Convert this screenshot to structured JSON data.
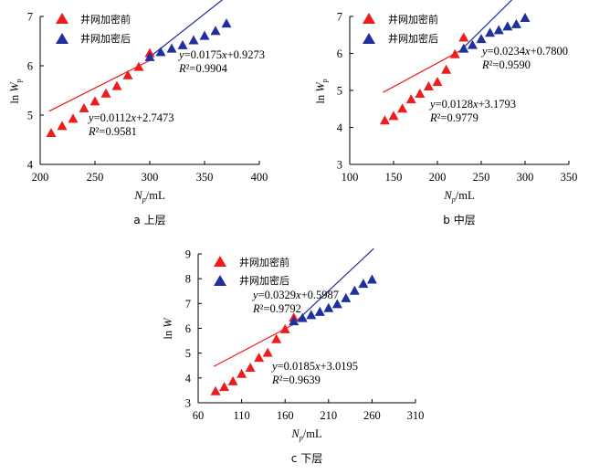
{
  "colors": {
    "before": "#ee1c1c",
    "after": "#1f2f9e",
    "axis": "#000000"
  },
  "chart_data": [
    {
      "type": "scatter",
      "caption": "a 上层",
      "xlabel_main": "N",
      "xlabel_sub": "p",
      "xlabel_unit": "/mL",
      "ylabel_main": "ln ",
      "ylabel_italic": "W",
      "ylabel_sub": "p",
      "xlim": [
        200,
        400
      ],
      "ylim": [
        4,
        7
      ],
      "xticks": [
        200,
        250,
        300,
        350,
        400
      ],
      "yticks": [
        4,
        5,
        6,
        7
      ],
      "legend": [
        "井网加密前",
        "井网加密后"
      ],
      "series": [
        {
          "name": "井网加密前",
          "marker": "triangle",
          "x": [
            210,
            220,
            230,
            240,
            250,
            260,
            270,
            280,
            290,
            300
          ],
          "y": [
            4.63,
            4.77,
            4.92,
            5.13,
            5.27,
            5.43,
            5.58,
            5.8,
            5.97,
            6.25
          ],
          "fit": {
            "slope": 0.0112,
            "intercept": 2.7473,
            "x_range": [
              208,
              301
            ]
          },
          "equation": "y=0.0112x+2.7473",
          "r2_label": "R²=0.9581"
        },
        {
          "name": "井网加密后",
          "marker": "triangle",
          "x": [
            300,
            310,
            320,
            330,
            340,
            350,
            360,
            370
          ],
          "y": [
            6.17,
            6.27,
            6.34,
            6.41,
            6.51,
            6.6,
            6.7,
            6.85
          ],
          "fit": {
            "slope": 0.0175,
            "intercept": 0.9273,
            "x_range": [
              299,
              377
            ]
          },
          "equation": "y=0.0175x+0.9273",
          "r2_label": "R²=0.9904"
        }
      ]
    },
    {
      "type": "scatter",
      "caption": "b 中层",
      "xlabel_main": "N",
      "xlabel_sub": "p",
      "xlabel_unit": "/mL",
      "ylabel_main": "ln ",
      "ylabel_italic": "W",
      "ylabel_sub": "p",
      "xlim": [
        100,
        350
      ],
      "ylim": [
        3,
        7
      ],
      "xticks": [
        100,
        150,
        200,
        250,
        300,
        350
      ],
      "yticks": [
        3,
        4,
        5,
        6,
        7
      ],
      "legend": [
        "井网加密前",
        "井网加密后"
      ],
      "series": [
        {
          "name": "井网加密前",
          "marker": "triangle",
          "x": [
            140,
            150,
            160,
            170,
            180,
            190,
            200,
            210,
            220,
            230
          ],
          "y": [
            4.18,
            4.3,
            4.5,
            4.75,
            4.9,
            5.1,
            5.22,
            5.55,
            5.97,
            6.42
          ],
          "fit": {
            "slope": 0.0128,
            "intercept": 3.1793,
            "x_range": [
              138,
              232
            ]
          },
          "equation": "y=0.0128x+3.1793",
          "r2_label": "R²=0.9779"
        },
        {
          "name": "井网加密后",
          "marker": "triangle",
          "x": [
            230,
            240,
            250,
            260,
            270,
            280,
            290,
            300
          ],
          "y": [
            6.12,
            6.22,
            6.38,
            6.55,
            6.62,
            6.72,
            6.78,
            6.95
          ],
          "fit": {
            "slope": 0.0234,
            "intercept": 0.78,
            "x_range": [
              228,
              302
            ]
          },
          "equation": "y=0.0234x+0.7800",
          "r2_label": "R²=0.9590"
        }
      ]
    },
    {
      "type": "scatter",
      "caption": "c 下层",
      "xlabel_main": "N",
      "xlabel_sub": "p",
      "xlabel_unit": "/mL",
      "ylabel_main": "ln ",
      "ylabel_italic": "W",
      "ylabel_sub": "",
      "xlim": [
        60,
        310
      ],
      "ylim": [
        3,
        9
      ],
      "xticks": [
        60,
        110,
        160,
        210,
        260,
        310
      ],
      "yticks": [
        3,
        4,
        5,
        6,
        7,
        8,
        9
      ],
      "legend": [
        "井网加密前",
        "井网加密后"
      ],
      "series": [
        {
          "name": "井网加密前",
          "marker": "triangle",
          "x": [
            80,
            90,
            100,
            110,
            120,
            130,
            140,
            150,
            160,
            170
          ],
          "y": [
            3.45,
            3.62,
            3.85,
            4.15,
            4.4,
            4.8,
            5.0,
            5.55,
            5.95,
            6.42
          ],
          "fit": {
            "slope": 0.0185,
            "intercept": 3.0195,
            "x_range": [
              78,
              171
            ]
          },
          "equation": "y=0.0185x+3.0195",
          "r2_label": "R²=0.9639"
        },
        {
          "name": "井网加密后",
          "marker": "triangle",
          "x": [
            170,
            180,
            190,
            200,
            210,
            220,
            230,
            240,
            250,
            260
          ],
          "y": [
            6.27,
            6.4,
            6.52,
            6.65,
            6.8,
            6.96,
            7.2,
            7.5,
            7.78,
            7.95
          ],
          "fit": {
            "slope": 0.0329,
            "intercept": 0.5987,
            "x_range": [
              168,
              262
            ]
          },
          "equation": "y=0.0329x+0.5987",
          "r2_label": "R²=0.9792"
        }
      ]
    }
  ]
}
